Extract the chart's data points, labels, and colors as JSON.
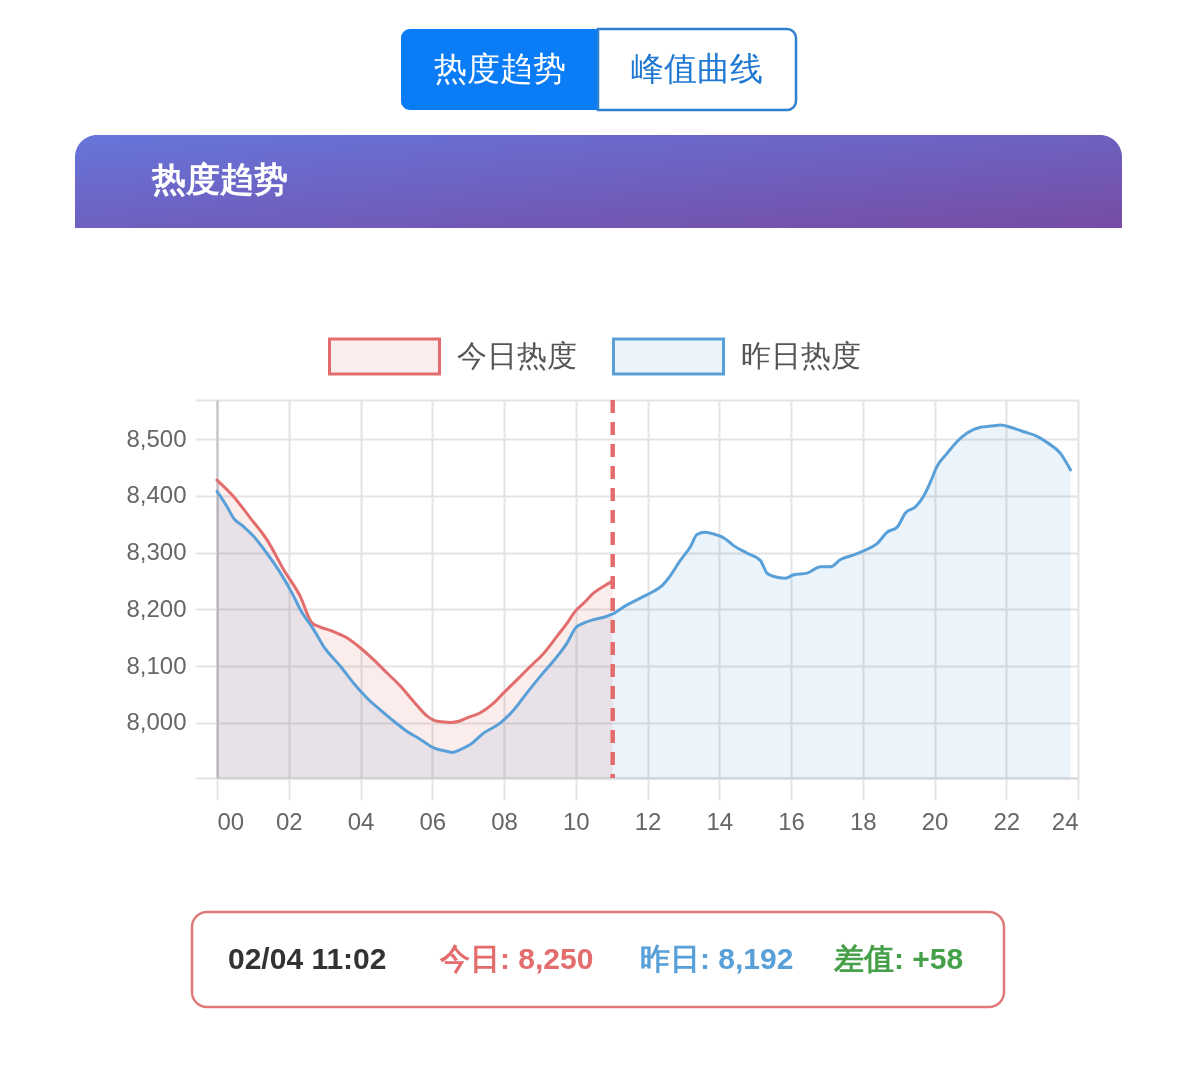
{
  "chart_data": {
    "type": "area",
    "title": "热度趋势",
    "annotations": [
      "热度趋势",
      "峰值曲线",
      "02/04 11:02",
      "今日: 8,250",
      "昨日: 8,192",
      "差值: +58"
    ],
    "series": [
      {
        "name": "今日热度",
        "color": "#e36d6d",
        "x": [
          0,
          0.46,
          0.93,
          1.39,
          1.86,
          2.32,
          2.65,
          2.88,
          3.25,
          3.62,
          4.0,
          4.37,
          4.74,
          5.11,
          5.48,
          5.86,
          6.13,
          6.51,
          6.74,
          6.97,
          7.34,
          7.71,
          7.99,
          8.36,
          8.74,
          9.11,
          9.48,
          9.76,
          9.99,
          10.22,
          10.5,
          10.78,
          11.03
        ],
        "values": [
          8428,
          8399,
          8361,
          8323,
          8270,
          8223,
          8176,
          8169,
          8161,
          8150,
          8132,
          8111,
          8088,
          8065,
          8038,
          8012,
          8003,
          8001,
          8003,
          8009,
          8018,
          8035,
          8053,
          8076,
          8100,
          8123,
          8153,
          8176,
          8197,
          8211,
          8229,
          8241,
          8250
        ]
      },
      {
        "name": "昨日热度",
        "color": "#5aa0d8",
        "x": [
          0,
          0.28,
          0.46,
          0.74,
          1.02,
          1.39,
          1.77,
          2.14,
          2.32,
          2.7,
          2.97,
          3.44,
          3.81,
          4.18,
          4.55,
          4.93,
          5.3,
          5.67,
          6.04,
          6.41,
          6.55,
          6.78,
          7.06,
          7.43,
          7.9,
          8.27,
          8.64,
          9.01,
          9.48,
          9.76,
          9.99,
          10.22,
          10.5,
          10.87,
          11.03,
          11.43,
          11.8,
          12.17,
          12.39,
          12.62,
          12.9,
          13.2,
          13.38,
          13.61,
          13.85,
          14.13,
          14.41,
          14.78,
          15.15,
          15.33,
          15.52,
          15.84,
          16.08,
          16.45,
          16.83,
          17.1,
          17.38,
          17.75,
          18.12,
          18.4,
          18.68,
          18.96,
          19.19,
          19.47,
          19.7,
          19.89,
          20.07,
          20.35,
          20.63,
          20.91,
          21.28,
          21.56,
          21.84,
          22.12,
          22.49,
          22.86,
          23.14,
          23.51,
          23.79
        ],
        "values": [
          8408,
          8381,
          8361,
          8346,
          8329,
          8299,
          8264,
          8223,
          8200,
          8164,
          8135,
          8100,
          8070,
          8044,
          8023,
          8003,
          7985,
          7971,
          7956,
          7950,
          7948,
          7953,
          7962,
          7982,
          8000,
          8023,
          8053,
          8082,
          8117,
          8141,
          8167,
          8176,
          8182,
          8188,
          8192,
          8208,
          8220,
          8232,
          8241,
          8258,
          8285,
          8311,
          8332,
          8336,
          8333,
          8326,
          8312,
          8299,
          8286,
          8264,
          8258,
          8255,
          8261,
          8264,
          8275,
          8275,
          8288,
          8296,
          8306,
          8316,
          8336,
          8345,
          8370,
          8381,
          8400,
          8425,
          8452,
          8475,
          8496,
          8511,
          8521,
          8523,
          8525,
          8521,
          8513,
          8505,
          8494,
          8475,
          8446
        ]
      }
    ],
    "xlim": [
      0,
      24
    ],
    "xticks": [
      {
        "value": 0,
        "label": "00"
      },
      {
        "value": 2,
        "label": "02"
      },
      {
        "value": 4,
        "label": "04"
      },
      {
        "value": 6,
        "label": "06"
      },
      {
        "value": 8,
        "label": "08"
      },
      10,
      12,
      14,
      16,
      18,
      20,
      22,
      24
    ],
    "ylim": [
      7903,
      8569
    ],
    "yticks": [
      {
        "value": 7903,
        "label": null
      },
      {
        "value": 8000,
        "label": "8,000"
      },
      {
        "value": 8100,
        "label": "8,100"
      },
      {
        "value": 8200,
        "label": "8,200"
      },
      {
        "value": 8300,
        "label": "8,300"
      },
      {
        "value": 8400,
        "label": "8,400"
      },
      {
        "value": 8500,
        "label": "8,500"
      },
      {
        "value": 8569,
        "label": null
      }
    ],
    "ref_lines": [
      {
        "axis": "x",
        "value": 11.03,
        "color": "#e36d6d",
        "line_style": "dashed"
      }
    ],
    "grid": true,
    "legend": "top"
  }
}
